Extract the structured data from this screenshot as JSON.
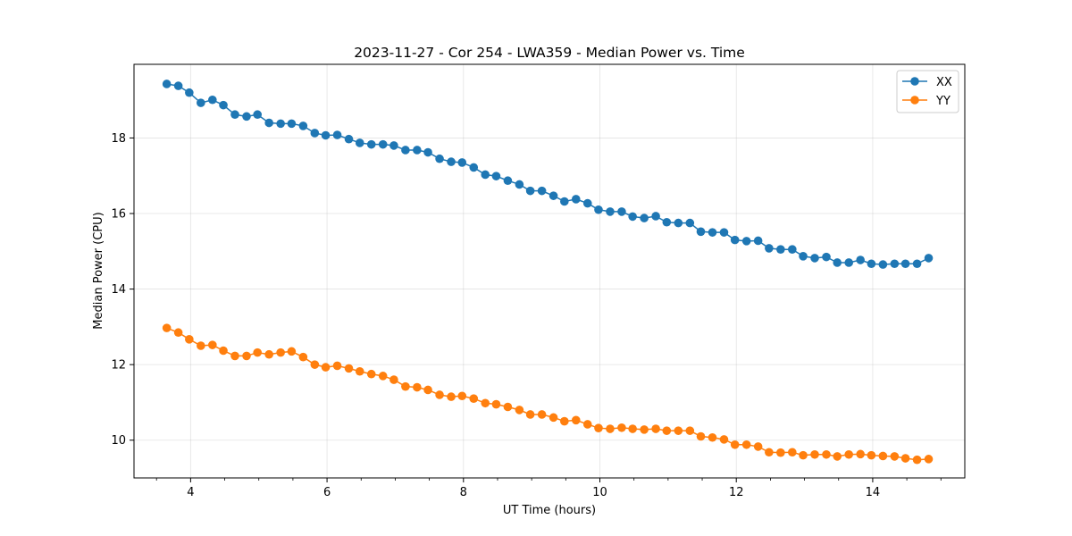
{
  "chart_data": {
    "type": "line",
    "title": "2023-11-27 - Cor 254 - LWA359 - Median Power vs. Time",
    "xlabel": "UT Time (hours)",
    "ylabel": "Median Power (CPU)",
    "xlim": [
      3.17,
      15.35
    ],
    "ylim": [
      9.0,
      19.95
    ],
    "xticks": [
      4,
      6,
      8,
      10,
      12,
      14
    ],
    "xtick_labels": [
      "4",
      "6",
      "8",
      "10",
      "12",
      "14"
    ],
    "yticks": [
      10,
      12,
      14,
      16,
      18
    ],
    "ytick_labels": [
      "10",
      "12",
      "14",
      "16",
      "18"
    ],
    "grid": true,
    "legend_position": "top-right",
    "x": [
      3.65,
      3.82,
      3.98,
      4.15,
      4.32,
      4.48,
      4.65,
      4.82,
      4.98,
      5.15,
      5.32,
      5.48,
      5.65,
      5.82,
      5.98,
      6.15,
      6.32,
      6.48,
      6.65,
      6.82,
      6.98,
      7.15,
      7.32,
      7.48,
      7.65,
      7.82,
      7.98,
      8.15,
      8.32,
      8.48,
      8.65,
      8.82,
      8.98,
      9.15,
      9.32,
      9.48,
      9.65,
      9.82,
      9.98,
      10.15,
      10.32,
      10.48,
      10.65,
      10.82,
      10.98,
      11.15,
      11.32,
      11.48,
      11.65,
      11.82,
      11.98,
      12.15,
      12.32,
      12.48,
      12.65,
      12.82,
      12.98,
      13.15,
      13.32,
      13.48,
      13.65,
      13.82,
      13.98,
      14.15,
      14.32,
      14.48,
      14.65,
      14.82
    ],
    "series": [
      {
        "name": "XX",
        "color": "#1f77b4",
        "values": [
          19.43,
          19.38,
          19.2,
          18.93,
          19.01,
          18.87,
          18.62,
          18.57,
          18.62,
          18.4,
          18.38,
          18.38,
          18.32,
          18.13,
          18.07,
          18.08,
          17.97,
          17.87,
          17.83,
          17.83,
          17.8,
          17.68,
          17.68,
          17.62,
          17.45,
          17.37,
          17.35,
          17.22,
          17.03,
          16.99,
          16.87,
          16.77,
          16.6,
          16.6,
          16.47,
          16.32,
          16.38,
          16.27,
          16.1,
          16.05,
          16.05,
          15.92,
          15.88,
          15.93,
          15.77,
          15.75,
          15.75,
          15.52,
          15.5,
          15.5,
          15.3,
          15.27,
          15.28,
          15.08,
          15.05,
          15.05,
          14.87,
          14.82,
          14.85,
          14.7,
          14.7,
          14.77,
          14.67,
          14.65,
          14.67,
          14.67,
          14.67,
          14.82
        ]
      },
      {
        "name": "YY",
        "color": "#ff7f0e",
        "values": [
          12.97,
          12.85,
          12.67,
          12.5,
          12.52,
          12.37,
          12.23,
          12.23,
          12.32,
          12.27,
          12.32,
          12.35,
          12.2,
          12.0,
          11.93,
          11.97,
          11.9,
          11.82,
          11.75,
          11.7,
          11.6,
          11.42,
          11.4,
          11.33,
          11.2,
          11.15,
          11.17,
          11.1,
          10.98,
          10.95,
          10.88,
          10.8,
          10.68,
          10.68,
          10.6,
          10.5,
          10.53,
          10.42,
          10.32,
          10.3,
          10.33,
          10.3,
          10.28,
          10.3,
          10.25,
          10.25,
          10.25,
          10.1,
          10.07,
          10.02,
          9.88,
          9.88,
          9.83,
          9.68,
          9.67,
          9.68,
          9.6,
          9.62,
          9.62,
          9.57,
          9.62,
          9.63,
          9.6,
          9.58,
          9.57,
          9.52,
          9.48,
          9.5
        ]
      }
    ]
  }
}
